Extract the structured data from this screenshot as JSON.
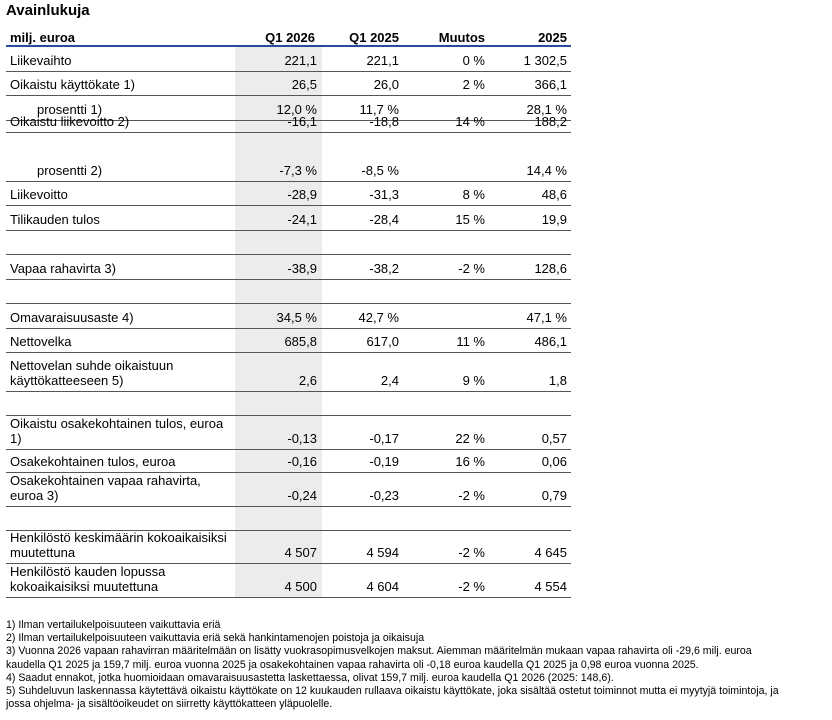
{
  "title": "Avainlukuja",
  "header": {
    "label": "milj. euroa",
    "c1": "Q1 2026",
    "c2": "Q1 2025",
    "c3": "Muutos",
    "c4": "2025"
  },
  "rows": [
    {
      "label": "Liikevaihto",
      "v": [
        "221,1",
        "221,1",
        "0 %",
        "1 302,5"
      ]
    },
    {
      "label": "Oikaistu käyttökate 1)",
      "v": [
        "26,5",
        "26,0",
        "2 %",
        "366,1"
      ]
    },
    {
      "label": "prosentti 1)",
      "v": [
        "12,0 %",
        "11,7 %",
        "",
        "28,1 %"
      ]
    },
    {
      "label": "Oikaistu liikevoitto 2)",
      "v": [
        "-16,1",
        "-18,8",
        "14 %",
        "188,2"
      ]
    },
    {
      "label": "prosentti 2)",
      "v": [
        "-7,3 %",
        "-8,5 %",
        "",
        "14,4 %"
      ]
    },
    {
      "label": "Liikevoitto",
      "v": [
        "-28,9",
        "-31,3",
        "8 %",
        "48,6"
      ]
    },
    {
      "label": "Tilikauden tulos",
      "v": [
        "-24,1",
        "-28,4",
        "15 %",
        "19,9"
      ]
    },
    {
      "label": "",
      "v": [
        "",
        "",
        "",
        ""
      ]
    },
    {
      "label": "Vapaa rahavirta 3)",
      "v": [
        "-38,9",
        "-38,2",
        "-2 %",
        "128,6"
      ]
    },
    {
      "label": "",
      "v": [
        "",
        "",
        "",
        ""
      ]
    },
    {
      "label": "Omavaraisuusaste 4)",
      "v": [
        "34,5 %",
        "42,7 %",
        "",
        "47,1 %"
      ]
    },
    {
      "label": "Nettovelka",
      "v": [
        "685,8",
        "617,0",
        "11 %",
        "486,1"
      ]
    },
    {
      "label": "Nettovelan suhde oikaistuun",
      "label2": "käyttökatteeseen 5)",
      "v": [
        "2,6",
        "2,4",
        "9 %",
        "1,8"
      ]
    },
    {
      "label": "",
      "v": [
        "",
        "",
        "",
        ""
      ]
    },
    {
      "label": "Oikaistu osakekohtainen tulos, euroa",
      "label2": "1)",
      "v": [
        "-0,13",
        "-0,17",
        "22 %",
        "0,57"
      ]
    },
    {
      "label": "Osakekohtainen tulos, euroa",
      "v": [
        "-0,16",
        "-0,19",
        "16 %",
        "0,06"
      ]
    },
    {
      "label": "Osakekohtainen vapaa rahavirta,",
      "label2": "euroa 3)",
      "v": [
        "-0,24",
        "-0,23",
        "-2 %",
        "0,79"
      ]
    },
    {
      "label": "",
      "v": [
        "",
        "",
        "",
        ""
      ]
    },
    {
      "label": "Henkilöstö keskimäärin kokoaikaisiksi",
      "label2": "muutettuna",
      "v": [
        "4 507",
        "4 594",
        "-2 %",
        "4 645"
      ]
    },
    {
      "label": "Henkilöstö kauden lopussa",
      "label2": "kokoaikaisiksi muutettuna",
      "v": [
        "4 500",
        "4 604",
        "-2 %",
        "4 554"
      ]
    }
  ],
  "notes": [
    "1) Ilman vertailukelpoisuuteen vaikuttavia eriä",
    "2) Ilman vertailukelpoisuuteen vaikuttavia eriä sekä hankintamenojen poistoja ja oikaisuja",
    "3) Vuonna 2026 vapaan rahavirran määritelmään on lisätty vuokrasopimusvelkojen maksut. Aiemman määritelmän mukaan vapaa rahavirta oli -29,6 milj. euroa",
    "kaudella Q1 2025 ja 159,7 milj. euroa vuonna 2025 ja osakekohtainen vapaa rahavirta oli -0,18 euroa kaudella Q1 2025 ja 0,98 euroa vuonna 2025.",
    "4) Saadut ennakot, jotka huomioidaan omavaraisuusastetta laskettaessa, olivat 159,7 milj. euroa kaudella Q1 2026 (2025: 148,6).",
    "5) Suhdeluvun laskennassa käytettävä oikaistu käyttökate on 12 kuukauden rullaava oikaistu käyttökate, joka sisältää ostetut toiminnot mutta ei myytyjä toimintoja, ja",
    "jossa ohjelma- ja sisältöoikeudet on siirretty käyttökatteen yläpuolelle."
  ]
}
